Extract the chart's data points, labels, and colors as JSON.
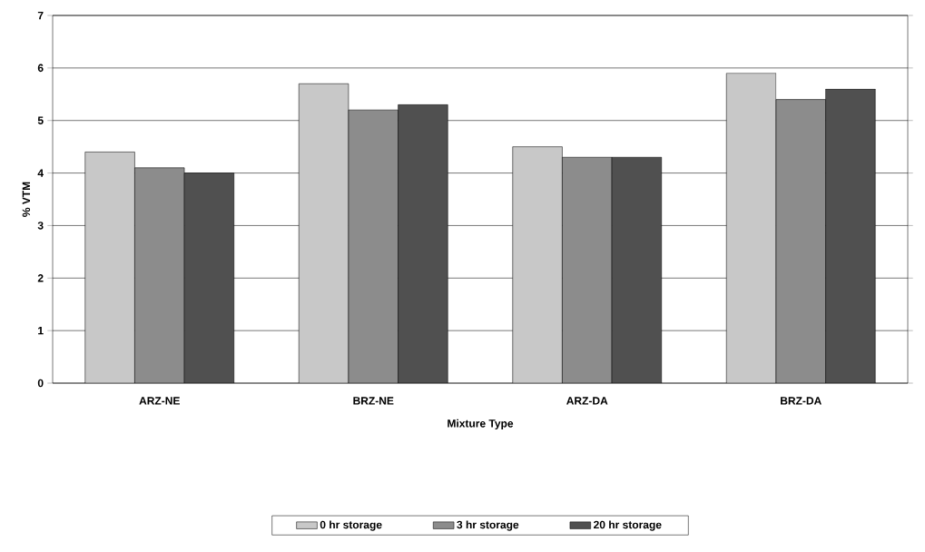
{
  "chart_data": {
    "type": "bar",
    "xlabel": "Mixture Type",
    "ylabel": "% VTM",
    "categories": [
      "ARZ-NE",
      "BRZ-NE",
      "ARZ-DA",
      "BRZ-DA"
    ],
    "series": [
      {
        "name": "0 hr storage",
        "color": "#c8c8c8",
        "values": [
          4.4,
          5.7,
          4.5,
          5.9
        ]
      },
      {
        "name": "3 hr storage",
        "color": "#8c8c8c",
        "values": [
          4.1,
          5.2,
          4.3,
          5.4
        ]
      },
      {
        "name": "20 hr storage",
        "color": "#505050",
        "values": [
          4.0,
          5.3,
          4.3,
          5.6
        ]
      }
    ],
    "ylim": [
      0,
      7
    ],
    "yticks": [
      0,
      1,
      2,
      3,
      4,
      5,
      6,
      7
    ],
    "grid": "y",
    "legend": "bottom"
  }
}
